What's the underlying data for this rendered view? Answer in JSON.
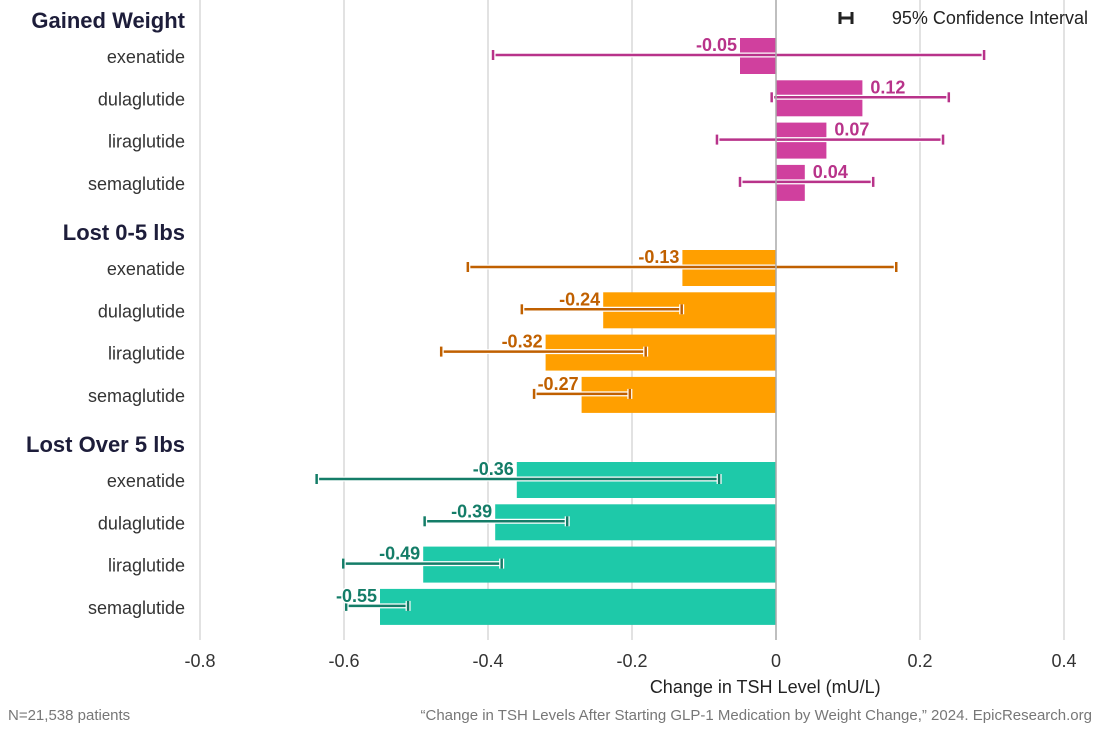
{
  "chart_data": {
    "type": "bar",
    "orientation": "horizontal",
    "xlabel": "Change in TSH Level (mU/L)",
    "xlim": [
      -0.8,
      0.4
    ],
    "xticks": [
      -0.8,
      -0.6,
      -0.4,
      -0.2,
      0,
      0.2,
      0.4
    ],
    "xtick_labels": [
      "-0.8",
      "-0.6",
      "-0.4",
      "-0.2",
      "0",
      "0.2",
      "0.4"
    ],
    "grid": true,
    "legend": {
      "label": "95% Confidence Interval",
      "placement": "top-right"
    },
    "groups": [
      {
        "name": "Gained Weight",
        "color": "#d0409e",
        "label_color": "#b8338a",
        "rows": [
          {
            "drug": "exenatide",
            "value": -0.05,
            "label": "-0.05",
            "ci": [
              -0.393,
              0.289
            ]
          },
          {
            "drug": "dulaglutide",
            "value": 0.12,
            "label": "0.12",
            "ci": [
              -0.006,
              0.24
            ]
          },
          {
            "drug": "liraglutide",
            "value": 0.07,
            "label": "0.07",
            "ci": [
              -0.082,
              0.232
            ]
          },
          {
            "drug": "semaglutide",
            "value": 0.04,
            "label": "0.04",
            "ci": [
              -0.05,
              0.135
            ]
          }
        ]
      },
      {
        "name": "Lost 0-5 lbs",
        "color": "#ff9f00",
        "label_color": "#c06000",
        "rows": [
          {
            "drug": "exenatide",
            "value": -0.13,
            "label": "-0.13",
            "ci": [
              -0.428,
              0.167
            ]
          },
          {
            "drug": "dulaglutide",
            "value": -0.24,
            "label": "-0.24",
            "ci": [
              -0.353,
              -0.131
            ]
          },
          {
            "drug": "liraglutide",
            "value": -0.32,
            "label": "-0.32",
            "ci": [
              -0.465,
              -0.181
            ]
          },
          {
            "drug": "semaglutide",
            "value": -0.27,
            "label": "-0.27",
            "ci": [
              -0.336,
              -0.203
            ]
          }
        ]
      },
      {
        "name": "Lost Over 5 lbs",
        "color": "#1ec9a9",
        "label_color": "#147d68",
        "rows": [
          {
            "drug": "exenatide",
            "value": -0.36,
            "label": "-0.36",
            "ci": [
              -0.638,
              -0.079
            ]
          },
          {
            "drug": "dulaglutide",
            "value": -0.39,
            "label": "-0.39",
            "ci": [
              -0.488,
              -0.29
            ]
          },
          {
            "drug": "liraglutide",
            "value": -0.49,
            "label": "-0.49",
            "ci": [
              -0.601,
              -0.381
            ]
          },
          {
            "drug": "semaglutide",
            "value": -0.55,
            "label": "-0.55",
            "ci": [
              -0.597,
              -0.511
            ]
          }
        ]
      }
    ]
  },
  "footer": {
    "n": "N=21,538 patients",
    "source": "“Change in TSH Levels After Starting GLP-1 Medication by Weight Change,” 2024. EpicResearch.org"
  }
}
